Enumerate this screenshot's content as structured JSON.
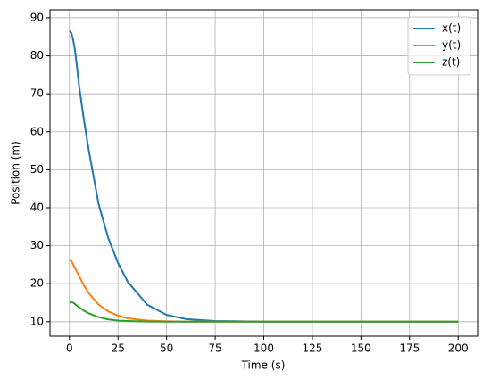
{
  "chart_data": {
    "type": "line",
    "xlabel": "Time (s)",
    "ylabel": "Position (m)",
    "x": [
      0,
      1,
      2,
      3,
      5,
      7.5,
      10,
      15,
      20,
      25,
      30,
      40,
      50,
      60,
      75,
      100,
      125,
      150,
      175,
      200
    ],
    "series": [
      {
        "name": "x(t)",
        "color": "#1f77b4",
        "values": [
          86.5,
          86.0,
          84.0,
          81.0,
          72.0,
          63.0,
          55.0,
          41.0,
          32.0,
          25.5,
          20.5,
          14.5,
          11.8,
          10.7,
          10.2,
          10.0,
          10.0,
          10.0,
          10.0,
          10.0
        ]
      },
      {
        "name": "y(t)",
        "color": "#ff7f0e",
        "values": [
          26.2,
          26.0,
          25.0,
          24.0,
          22.0,
          19.5,
          17.5,
          14.5,
          12.7,
          11.6,
          10.9,
          10.3,
          10.1,
          10.0,
          10.0,
          10.0,
          10.0,
          10.0,
          10.0,
          10.0
        ]
      },
      {
        "name": "z(t)",
        "color": "#2ca02c",
        "values": [
          15.0,
          15.2,
          15.0,
          14.6,
          13.8,
          12.9,
          12.2,
          11.2,
          10.6,
          10.3,
          10.2,
          10.05,
          10.0,
          10.0,
          10.0,
          10.0,
          10.0,
          10.0,
          10.0,
          10.0
        ]
      }
    ],
    "xlim": [
      -10,
      210
    ],
    "xticks": [
      0,
      25,
      50,
      75,
      100,
      125,
      150,
      175,
      200
    ],
    "ylim": [
      6.2,
      92.1
    ],
    "yticks": [
      10,
      20,
      30,
      40,
      50,
      60,
      70,
      80,
      90
    ],
    "grid": true,
    "legend": "upper right"
  }
}
